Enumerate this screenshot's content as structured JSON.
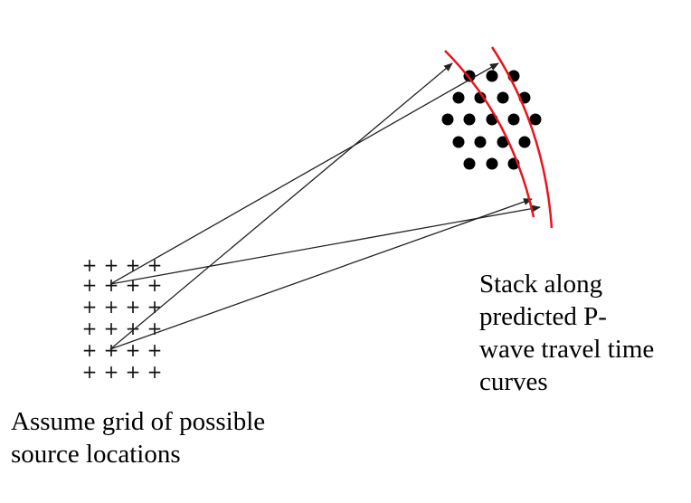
{
  "labels": {
    "left_caption": "Assume grid of possible\nsource locations",
    "right_caption": "Stack along\npredicted P-\nwave travel time\ncurves"
  },
  "grid": {
    "rows": 6,
    "cols": 4,
    "glyph": "+"
  },
  "colors": {
    "curve": "#e8141e",
    "arrow": "#222222",
    "station": "#000000"
  },
  "arrow_count": 4,
  "curve_count": 2
}
